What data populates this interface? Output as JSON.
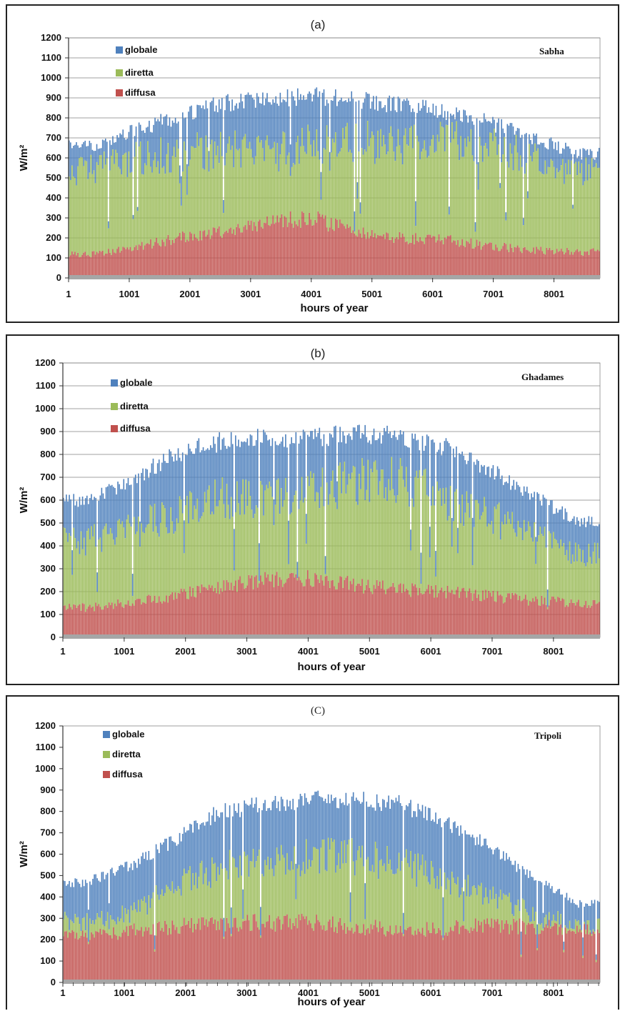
{
  "colors": {
    "globale": "#4f81bd",
    "diretta": "#9bbb59",
    "diffusa": "#c0504d",
    "baseline": "#a6a6a6",
    "grid": "#808080"
  },
  "chart_data": [
    {
      "type": "bar",
      "panel_label": "(a)",
      "site": "Sabha",
      "ylabel": "W/m²",
      "xlabel": "hours of year",
      "ylim": [
        0,
        1200
      ],
      "xlim": [
        1,
        8760
      ],
      "yticks": [
        "0",
        "100",
        "200",
        "300",
        "400",
        "500",
        "600",
        "700",
        "800",
        "900",
        "1000",
        "1100",
        "1200"
      ],
      "xticks": [
        "1",
        "1001",
        "2001",
        "3001",
        "4001",
        "5001",
        "6001",
        "7001",
        "8001"
      ],
      "grid": true,
      "legend_position": "top-left",
      "series": [
        {
          "name": "globale",
          "key": "globale",
          "months_mid_hour": [
            372,
            1080,
            1788,
            2532,
            3264,
            4008,
            4740,
            5484,
            6216,
            6948,
            7680,
            8412
          ],
          "daily_peak_typical": [
            680,
            760,
            830,
            900,
            920,
            940,
            920,
            890,
            860,
            800,
            720,
            640
          ]
        },
        {
          "name": "diretta",
          "key": "diretta",
          "months_mid_hour": [
            372,
            1080,
            1788,
            2532,
            3264,
            4008,
            4740,
            5484,
            6216,
            6948,
            7680,
            8412
          ],
          "daily_peak_typical": [
            570,
            620,
            660,
            680,
            650,
            700,
            720,
            700,
            720,
            690,
            640,
            560
          ]
        },
        {
          "name": "diffusa",
          "key": "diffusa",
          "months_mid_hour": [
            372,
            1080,
            1788,
            2532,
            3264,
            4008,
            4740,
            5484,
            6216,
            6948,
            7680,
            8412
          ],
          "daily_peak_typical": [
            120,
            150,
            200,
            230,
            280,
            300,
            230,
            200,
            190,
            160,
            140,
            130
          ]
        }
      ]
    },
    {
      "type": "bar",
      "panel_label": "(b)",
      "site": "Ghadames",
      "ylabel": "W/m²",
      "xlabel": "hours of year",
      "ylim": [
        0,
        1200
      ],
      "xlim": [
        1,
        8760
      ],
      "yticks": [
        "0",
        "100",
        "200",
        "300",
        "400",
        "500",
        "600",
        "700",
        "800",
        "900",
        "1000",
        "1100",
        "1200"
      ],
      "xticks": [
        "1",
        "1001",
        "2001",
        "3001",
        "4001",
        "5001",
        "6001",
        "7001",
        "8001"
      ],
      "grid": true,
      "legend_position": "top-left",
      "series": [
        {
          "name": "globale",
          "key": "globale",
          "months_mid_hour": [
            372,
            1080,
            1788,
            2532,
            3264,
            4008,
            4740,
            5484,
            6216,
            6948,
            7680,
            8412
          ],
          "daily_peak_typical": [
            620,
            700,
            820,
            880,
            900,
            900,
            920,
            910,
            860,
            760,
            640,
            520
          ]
        },
        {
          "name": "diretta",
          "key": "diretta",
          "months_mid_hour": [
            372,
            1080,
            1788,
            2532,
            3264,
            4008,
            4740,
            5484,
            6216,
            6948,
            7680,
            8412
          ],
          "daily_peak_typical": [
            440,
            500,
            560,
            640,
            640,
            660,
            720,
            720,
            640,
            560,
            460,
            380
          ]
        },
        {
          "name": "diffusa",
          "key": "diffusa",
          "months_mid_hour": [
            372,
            1080,
            1788,
            2532,
            3264,
            4008,
            4740,
            5484,
            6216,
            6948,
            7680,
            8412
          ],
          "daily_peak_typical": [
            130,
            150,
            180,
            220,
            250,
            260,
            230,
            210,
            200,
            180,
            160,
            150
          ]
        }
      ]
    },
    {
      "type": "bar",
      "panel_label": "(C)",
      "site": "Tripoli",
      "ylabel": "W/m²",
      "xlabel": "hours of year",
      "ylim": [
        0,
        1200
      ],
      "xlim": [
        1,
        8760
      ],
      "yticks": [
        "0",
        "100",
        "200",
        "300",
        "400",
        "500",
        "600",
        "700",
        "800",
        "900",
        "1000",
        "1100",
        "1200"
      ],
      "xticks": [
        "1",
        "1001",
        "2001",
        "3001",
        "4001",
        "5001",
        "6001",
        "7001",
        "8001"
      ],
      "grid": false,
      "legend_position": "top-left",
      "series": [
        {
          "name": "globale",
          "key": "globale",
          "months_mid_hour": [
            372,
            1080,
            1788,
            2532,
            3264,
            4008,
            4740,
            5484,
            6216,
            6948,
            7680,
            8412
          ],
          "daily_peak_typical": [
            480,
            560,
            680,
            820,
            860,
            880,
            880,
            860,
            780,
            660,
            500,
            380
          ]
        },
        {
          "name": "diretta",
          "key": "diretta",
          "months_mid_hour": [
            372,
            1080,
            1788,
            2532,
            3264,
            4008,
            4740,
            5484,
            6216,
            6948,
            7680,
            8412
          ],
          "daily_peak_typical": [
            300,
            340,
            460,
            560,
            600,
            620,
            620,
            580,
            520,
            420,
            340,
            280
          ]
        },
        {
          "name": "diffusa",
          "key": "diffusa",
          "months_mid_hour": [
            372,
            1080,
            1788,
            2532,
            3264,
            4008,
            4740,
            5484,
            6216,
            6948,
            7680,
            8412
          ],
          "daily_peak_typical": [
            220,
            240,
            260,
            280,
            280,
            280,
            260,
            250,
            250,
            270,
            260,
            260
          ]
        }
      ]
    }
  ]
}
